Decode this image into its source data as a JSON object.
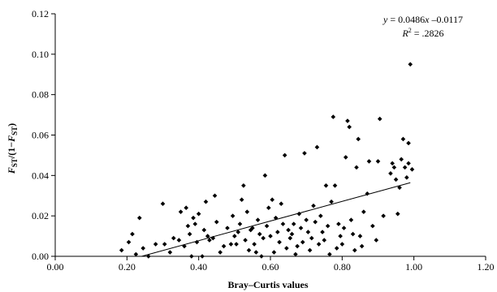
{
  "chart_data": {
    "type": "scatter",
    "title": "",
    "xlabel": "Bray–Curtis values",
    "ylabel": {
      "a": "F",
      "b": "ST",
      "c": "/(1−",
      "d": "F",
      "e": "ST",
      "f": ")"
    },
    "xlim": [
      0,
      1.2
    ],
    "ylim": [
      0,
      0.12
    ],
    "x_ticks": [
      "0.00",
      "0.20",
      "0.40",
      "0.60",
      "0.80",
      "1.00",
      "1.20"
    ],
    "y_ticks": [
      "0.00",
      "0.02",
      "0.04",
      "0.06",
      "0.08",
      "0.10",
      "0.12"
    ],
    "grid": false,
    "annotation": {
      "equation": {
        "a": "y",
        "b": " = 0.0486",
        "c": "x",
        "d": " –0.0117"
      },
      "r2": {
        "a": "R",
        "b": "2",
        "c": " = .2826"
      }
    },
    "trendline": {
      "slope": 0.0486,
      "intercept": -0.0117,
      "x_range": [
        0.24,
        0.99
      ]
    },
    "points": [
      [
        0.185,
        0.003
      ],
      [
        0.205,
        0.007
      ],
      [
        0.215,
        0.011
      ],
      [
        0.225,
        0.001
      ],
      [
        0.235,
        0.019
      ],
      [
        0.245,
        0.004
      ],
      [
        0.26,
        0.0
      ],
      [
        0.28,
        0.006
      ],
      [
        0.3,
        0.026
      ],
      [
        0.305,
        0.006
      ],
      [
        0.32,
        0.002
      ],
      [
        0.33,
        0.009
      ],
      [
        0.345,
        0.008
      ],
      [
        0.35,
        0.022
      ],
      [
        0.36,
        0.005
      ],
      [
        0.365,
        0.024
      ],
      [
        0.37,
        0.015
      ],
      [
        0.375,
        0.011
      ],
      [
        0.38,
        0.0
      ],
      [
        0.385,
        0.019
      ],
      [
        0.39,
        0.016
      ],
      [
        0.395,
        0.007
      ],
      [
        0.4,
        0.021
      ],
      [
        0.41,
        0.0
      ],
      [
        0.415,
        0.013
      ],
      [
        0.42,
        0.027
      ],
      [
        0.425,
        0.01
      ],
      [
        0.43,
        0.008
      ],
      [
        0.44,
        0.009
      ],
      [
        0.445,
        0.03
      ],
      [
        0.45,
        0.017
      ],
      [
        0.46,
        0.002
      ],
      [
        0.47,
        0.005
      ],
      [
        0.48,
        0.014
      ],
      [
        0.49,
        0.006
      ],
      [
        0.495,
        0.02
      ],
      [
        0.5,
        0.01
      ],
      [
        0.505,
        0.006
      ],
      [
        0.51,
        0.012
      ],
      [
        0.515,
        0.016
      ],
      [
        0.52,
        0.028
      ],
      [
        0.525,
        0.035
      ],
      [
        0.53,
        0.008
      ],
      [
        0.535,
        0.022
      ],
      [
        0.54,
        0.003
      ],
      [
        0.545,
        0.013
      ],
      [
        0.55,
        0.014
      ],
      [
        0.555,
        0.006
      ],
      [
        0.56,
        0.002
      ],
      [
        0.565,
        0.018
      ],
      [
        0.57,
        0.011
      ],
      [
        0.575,
        0.0
      ],
      [
        0.58,
        0.009
      ],
      [
        0.585,
        0.04
      ],
      [
        0.59,
        0.015
      ],
      [
        0.595,
        0.024
      ],
      [
        0.6,
        0.01
      ],
      [
        0.605,
        0.028
      ],
      [
        0.61,
        0.002
      ],
      [
        0.615,
        0.019
      ],
      [
        0.62,
        0.012
      ],
      [
        0.625,
        0.007
      ],
      [
        0.63,
        0.026
      ],
      [
        0.635,
        0.016
      ],
      [
        0.64,
        0.05
      ],
      [
        0.645,
        0.004
      ],
      [
        0.65,
        0.013
      ],
      [
        0.655,
        0.009
      ],
      [
        0.66,
        0.011
      ],
      [
        0.665,
        0.016
      ],
      [
        0.67,
        0.001
      ],
      [
        0.675,
        0.005
      ],
      [
        0.68,
        0.021
      ],
      [
        0.685,
        0.014
      ],
      [
        0.69,
        0.007
      ],
      [
        0.695,
        0.051
      ],
      [
        0.7,
        0.018
      ],
      [
        0.705,
        0.012
      ],
      [
        0.71,
        0.003
      ],
      [
        0.715,
        0.009
      ],
      [
        0.72,
        0.025
      ],
      [
        0.725,
        0.017
      ],
      [
        0.73,
        0.054
      ],
      [
        0.735,
        0.006
      ],
      [
        0.74,
        0.02
      ],
      [
        0.745,
        0.012
      ],
      [
        0.75,
        0.008
      ],
      [
        0.755,
        0.035
      ],
      [
        0.76,
        0.015
      ],
      [
        0.765,
        0.001
      ],
      [
        0.77,
        0.027
      ],
      [
        0.775,
        0.069
      ],
      [
        0.78,
        0.035
      ],
      [
        0.785,
        0.004
      ],
      [
        0.79,
        0.016
      ],
      [
        0.795,
        0.01
      ],
      [
        0.8,
        0.006
      ],
      [
        0.805,
        0.014
      ],
      [
        0.81,
        0.049
      ],
      [
        0.815,
        0.067
      ],
      [
        0.82,
        0.064
      ],
      [
        0.825,
        0.018
      ],
      [
        0.83,
        0.011
      ],
      [
        0.835,
        0.003
      ],
      [
        0.84,
        0.044
      ],
      [
        0.845,
        0.058
      ],
      [
        0.85,
        0.01
      ],
      [
        0.855,
        0.005
      ],
      [
        0.86,
        0.022
      ],
      [
        0.87,
        0.031
      ],
      [
        0.875,
        0.047
      ],
      [
        0.885,
        0.015
      ],
      [
        0.895,
        0.008
      ],
      [
        0.9,
        0.047
      ],
      [
        0.905,
        0.068
      ],
      [
        0.915,
        0.02
      ],
      [
        0.935,
        0.041
      ],
      [
        0.94,
        0.046
      ],
      [
        0.945,
        0.044
      ],
      [
        0.95,
        0.038
      ],
      [
        0.955,
        0.021
      ],
      [
        0.96,
        0.034
      ],
      [
        0.965,
        0.048
      ],
      [
        0.97,
        0.058
      ],
      [
        0.975,
        0.044
      ],
      [
        0.98,
        0.039
      ],
      [
        0.985,
        0.046
      ],
      [
        0.985,
        0.056
      ],
      [
        0.99,
        0.095
      ],
      [
        0.995,
        0.043
      ]
    ]
  }
}
